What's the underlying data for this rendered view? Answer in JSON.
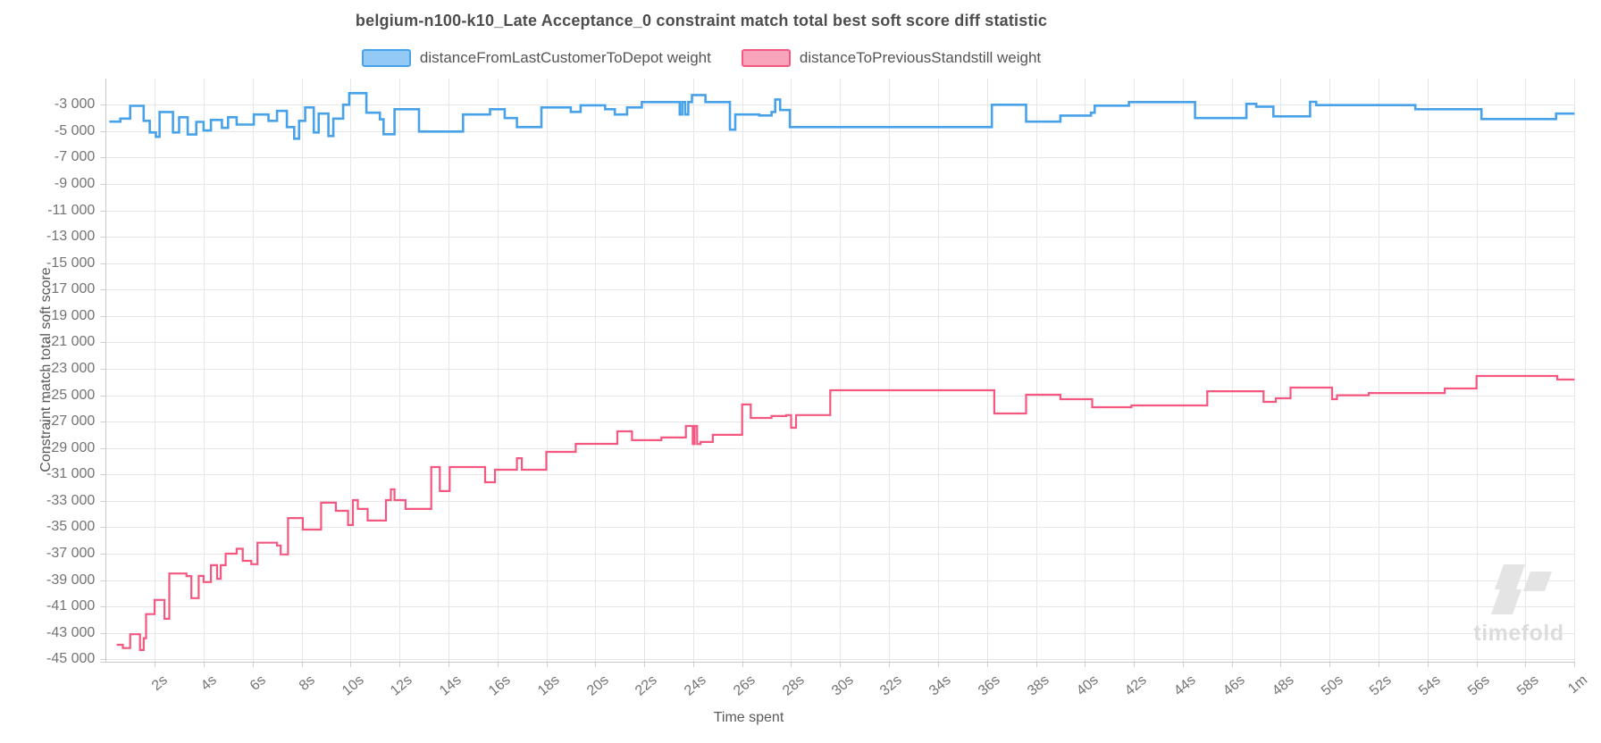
{
  "watermark": "timefold",
  "colors": {
    "grid": "#e7e7e7",
    "axis_border": "#c9c9c9",
    "tick_mark": "#cfcfcf",
    "title_text": "#4d4d4d",
    "tick_text": "#737373",
    "watermark_gray": "#e4e4e4"
  },
  "chart_data": {
    "type": "line",
    "step": true,
    "title": "belgium-n100-k10_Late Acceptance_0 constraint match total best soft score diff statistic",
    "xlabel": "Time spent",
    "ylabel": "Constraint match total soft score",
    "grid": true,
    "legend_position": "top",
    "xlim": [
      0,
      60
    ],
    "ylim": [
      -45300,
      -1100
    ],
    "x_ticks": {
      "values": [
        2,
        4,
        6,
        8,
        10,
        12,
        14,
        16,
        18,
        20,
        22,
        24,
        26,
        28,
        30,
        32,
        34,
        36,
        38,
        40,
        42,
        44,
        46,
        48,
        50,
        52,
        54,
        56,
        58,
        60
      ],
      "labels": [
        "2s",
        "4s",
        "6s",
        "8s",
        "10s",
        "12s",
        "14s",
        "16s",
        "18s",
        "20s",
        "22s",
        "24s",
        "26s",
        "28s",
        "30s",
        "32s",
        "34s",
        "36s",
        "38s",
        "40s",
        "42s",
        "44s",
        "46s",
        "48s",
        "50s",
        "52s",
        "54s",
        "56s",
        "58s",
        "1m"
      ]
    },
    "y_ticks": {
      "values": [
        -3000,
        -5000,
        -7000,
        -9000,
        -11000,
        -13000,
        -15000,
        -17000,
        -19000,
        -21000,
        -23000,
        -25000,
        -27000,
        -29000,
        -31000,
        -33000,
        -35000,
        -37000,
        -39000,
        -41000,
        -43000,
        -45000
      ],
      "labels": [
        "-3 000",
        "-5 000",
        "-7 000",
        "-9 000",
        "-11 000",
        "-13 000",
        "-15 000",
        "-17 000",
        "-19 000",
        "-21 000",
        "-23 000",
        "-25 000",
        "-27 000",
        "-29 000",
        "-31 000",
        "-33 000",
        "-35 000",
        "-37 000",
        "-39 000",
        "-41 000",
        "-43 000",
        "-45 000"
      ]
    },
    "series": [
      {
        "name": "distanceFromLastCustomerToDepot weight",
        "color": "#47a2e9",
        "fill": "#92c9f5",
        "points": [
          [
            0.15,
            -4280
          ],
          [
            0.6,
            -4050
          ],
          [
            1.0,
            -3080
          ],
          [
            1.55,
            -4220
          ],
          [
            1.8,
            -5100
          ],
          [
            2.05,
            -5430
          ],
          [
            2.2,
            -3550
          ],
          [
            2.75,
            -5100
          ],
          [
            3.0,
            -3950
          ],
          [
            3.35,
            -5250
          ],
          [
            3.7,
            -4300
          ],
          [
            4.0,
            -4950
          ],
          [
            4.3,
            -4150
          ],
          [
            4.75,
            -4750
          ],
          [
            5.0,
            -3950
          ],
          [
            5.35,
            -4500
          ],
          [
            6.05,
            -3740
          ],
          [
            6.65,
            -4220
          ],
          [
            7.0,
            -3470
          ],
          [
            7.4,
            -4690
          ],
          [
            7.7,
            -5570
          ],
          [
            7.9,
            -4220
          ],
          [
            8.15,
            -3200
          ],
          [
            8.5,
            -5100
          ],
          [
            8.7,
            -3670
          ],
          [
            9.1,
            -5370
          ],
          [
            9.3,
            -4050
          ],
          [
            9.7,
            -3000
          ],
          [
            9.95,
            -2120
          ],
          [
            10.65,
            -3600
          ],
          [
            11.2,
            -4100
          ],
          [
            11.35,
            -5230
          ],
          [
            11.8,
            -3340
          ],
          [
            12.8,
            -5030
          ],
          [
            14.6,
            -3740
          ],
          [
            15.7,
            -3340
          ],
          [
            16.3,
            -4010
          ],
          [
            16.8,
            -4690
          ],
          [
            17.8,
            -3200
          ],
          [
            19.0,
            -3540
          ],
          [
            19.4,
            -3040
          ],
          [
            20.4,
            -3340
          ],
          [
            20.8,
            -3740
          ],
          [
            21.3,
            -3200
          ],
          [
            21.9,
            -2800
          ],
          [
            23.45,
            -3740
          ],
          [
            23.55,
            -2800
          ],
          [
            23.67,
            -3740
          ],
          [
            23.8,
            -2800
          ],
          [
            23.95,
            -2260
          ],
          [
            24.5,
            -2800
          ],
          [
            25.5,
            -4890
          ],
          [
            25.72,
            -3740
          ],
          [
            26.7,
            -3810
          ],
          [
            27.2,
            -3550
          ],
          [
            27.35,
            -2600
          ],
          [
            27.55,
            -3400
          ],
          [
            27.95,
            -4690
          ],
          [
            36.2,
            -3000
          ],
          [
            37.6,
            -4280
          ],
          [
            39.0,
            -3820
          ],
          [
            40.25,
            -3600
          ],
          [
            40.4,
            -3070
          ],
          [
            41.8,
            -2800
          ],
          [
            44.5,
            -4010
          ],
          [
            46.6,
            -2930
          ],
          [
            47.0,
            -3140
          ],
          [
            47.7,
            -3880
          ],
          [
            49.2,
            -2780
          ],
          [
            49.45,
            -3030
          ],
          [
            53.5,
            -3340
          ],
          [
            56.2,
            -4080
          ],
          [
            59.25,
            -3670
          ]
        ]
      },
      {
        "name": "distanceToPreviousStandstill weight",
        "color": "#f4577f",
        "fill": "#f8a4bb",
        "points": [
          [
            0.45,
            -43900
          ],
          [
            0.7,
            -44150
          ],
          [
            1.0,
            -43100
          ],
          [
            1.4,
            -44300
          ],
          [
            1.55,
            -43400
          ],
          [
            1.65,
            -41580
          ],
          [
            2.0,
            -40500
          ],
          [
            2.4,
            -41930
          ],
          [
            2.6,
            -38500
          ],
          [
            3.3,
            -38700
          ],
          [
            3.5,
            -40370
          ],
          [
            3.8,
            -38680
          ],
          [
            4.0,
            -39150
          ],
          [
            4.3,
            -37870
          ],
          [
            4.55,
            -38900
          ],
          [
            4.7,
            -37870
          ],
          [
            4.9,
            -37000
          ],
          [
            5.35,
            -36630
          ],
          [
            5.6,
            -37540
          ],
          [
            5.95,
            -37800
          ],
          [
            6.2,
            -36170
          ],
          [
            7.0,
            -36380
          ],
          [
            7.15,
            -37050
          ],
          [
            7.45,
            -34300
          ],
          [
            8.05,
            -35170
          ],
          [
            8.8,
            -33140
          ],
          [
            9.4,
            -33750
          ],
          [
            9.9,
            -34830
          ],
          [
            10.1,
            -32940
          ],
          [
            10.3,
            -33610
          ],
          [
            10.7,
            -34490
          ],
          [
            11.45,
            -32940
          ],
          [
            11.65,
            -32130
          ],
          [
            11.8,
            -32940
          ],
          [
            12.25,
            -33610
          ],
          [
            13.3,
            -30440
          ],
          [
            13.65,
            -32260
          ],
          [
            14.05,
            -30440
          ],
          [
            15.5,
            -31590
          ],
          [
            15.9,
            -30640
          ],
          [
            16.8,
            -29770
          ],
          [
            17.0,
            -30640
          ],
          [
            18.0,
            -29290
          ],
          [
            19.2,
            -28680
          ],
          [
            20.9,
            -27730
          ],
          [
            21.5,
            -28400
          ],
          [
            22.7,
            -28200
          ],
          [
            23.7,
            -27330
          ],
          [
            23.98,
            -28700
          ],
          [
            24.06,
            -27330
          ],
          [
            24.16,
            -28700
          ],
          [
            24.3,
            -28540
          ],
          [
            24.8,
            -28000
          ],
          [
            26.0,
            -25700
          ],
          [
            26.35,
            -26720
          ],
          [
            27.2,
            -26580
          ],
          [
            27.8,
            -26500
          ],
          [
            28.0,
            -27460
          ],
          [
            28.2,
            -26500
          ],
          [
            29.6,
            -24620
          ],
          [
            36.3,
            -26380
          ],
          [
            37.6,
            -24960
          ],
          [
            39.0,
            -25300
          ],
          [
            40.3,
            -25910
          ],
          [
            41.9,
            -25770
          ],
          [
            45.0,
            -24700
          ],
          [
            47.3,
            -25500
          ],
          [
            47.8,
            -25230
          ],
          [
            48.4,
            -24420
          ],
          [
            50.1,
            -25300
          ],
          [
            50.3,
            -25000
          ],
          [
            51.6,
            -24830
          ],
          [
            54.7,
            -24490
          ],
          [
            56.0,
            -23540
          ],
          [
            59.3,
            -23810
          ]
        ]
      }
    ]
  }
}
